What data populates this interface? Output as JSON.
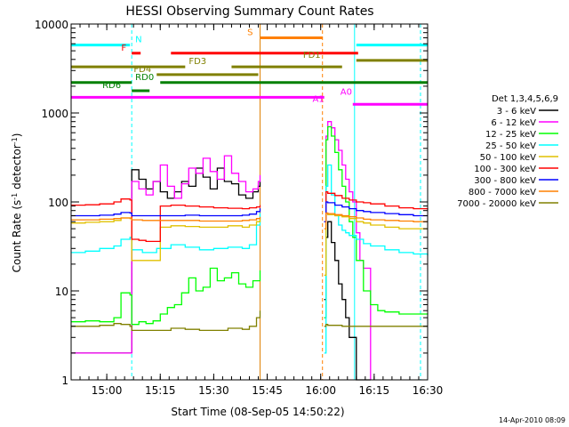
{
  "chart_data": {
    "type": "line",
    "title": "HESSI Observing Summary Count Rates",
    "xlabel": "Start Time (08-Sep-05 14:50:22)",
    "ylabel": "Count Rate (s⁻¹ detector⁻¹)",
    "ylabel_main": "Count Rate (s",
    "ylabel_sup1": "-1",
    "ylabel_mid": " detector",
    "ylabel_sup2": "-1",
    "ylabel_end": ")",
    "ylog": true,
    "xlim": [
      0,
      100
    ],
    "ylim": [
      1,
      10000
    ],
    "xtick_values": [
      10,
      25,
      40,
      55,
      70,
      85,
      100
    ],
    "xtick_labels": [
      "15:00",
      "15:15",
      "15:30",
      "15:45",
      "16:00",
      "16:15",
      "16:30"
    ],
    "ytick_values": [
      1,
      10,
      100,
      1000,
      10000
    ],
    "ytick_labels": [
      "1",
      "10",
      "100",
      "1000",
      "10000"
    ],
    "legend_placement": "right",
    "legend_title": "Det 1,3,4,5,6,9",
    "series": [
      {
        "name": "3 - 6 keV",
        "color": "#000000",
        "segments": [
          {
            "x": [
              0,
              5,
              10,
              15,
              16.5,
              17,
              19,
              21,
              23,
              25,
              27,
              29,
              31,
              33,
              35,
              37,
              39,
              41,
              43,
              45,
              47,
              49,
              51,
              52.5,
              53
            ],
            "y": [
              2,
              2,
              2,
              2,
              2,
              230,
              180,
              140,
              170,
              130,
              110,
              130,
              170,
              150,
              240,
              190,
              140,
              240,
              170,
              160,
              120,
              110,
              130,
              150,
              170
            ]
          },
          {
            "x": [
              71,
              71.5,
              72,
              73,
              74,
              75,
              76,
              77,
              78,
              80,
              82,
              84
            ],
            "y": [
              8,
              40,
              60,
              35,
              22,
              12,
              8,
              5,
              3,
              1,
              1,
              1
            ]
          }
        ]
      },
      {
        "name": "6 - 12 keV",
        "color": "#ff00ff",
        "segments": [
          {
            "x": [
              0,
              5,
              10,
              15,
              16.5,
              17,
              19,
              21,
              23,
              25,
              27,
              29,
              31,
              33,
              35,
              37,
              39,
              41,
              43,
              45,
              47,
              49,
              51,
              52.5,
              53
            ],
            "y": [
              2,
              2,
              2,
              2,
              2,
              170,
              140,
              120,
              170,
              260,
              150,
              110,
              160,
              240,
              210,
              310,
              220,
              180,
              330,
              210,
              170,
              130,
              140,
              170,
              200
            ]
          },
          {
            "x": [
              71,
              71.5,
              72,
              73,
              74,
              75,
              76,
              77,
              78,
              79,
              80,
              81,
              82,
              84
            ],
            "y": [
              5,
              550,
              800,
              680,
              500,
              380,
              260,
              180,
              130,
              100,
              45,
              22,
              18,
              1
            ]
          }
        ]
      },
      {
        "name": "12 - 25 keV",
        "color": "#00ff00",
        "segments": [
          {
            "x": [
              0,
              4,
              8,
              12,
              14,
              16.5,
              17,
              19,
              21,
              23,
              25,
              27,
              29,
              31,
              33,
              35,
              37,
              39,
              41,
              43,
              45,
              47,
              49,
              51,
              53
            ],
            "y": [
              4.5,
              4.6,
              4.5,
              5.0,
              9.5,
              9.0,
              4.2,
              4.5,
              4.3,
              4.6,
              5.5,
              6.5,
              7.0,
              9.5,
              14,
              10,
              11,
              18,
              13,
              14,
              16,
              12,
              11,
              13,
              17
            ]
          },
          {
            "x": [
              71,
              71.5,
              72,
              73,
              74,
              75,
              76,
              77,
              78,
              79,
              80,
              82,
              84,
              86,
              88,
              92,
              96,
              100
            ],
            "y": [
              5,
              500,
              700,
              550,
              360,
              230,
              150,
              100,
              60,
              40,
              22,
              10,
              7,
              6,
              5.8,
              5.5,
              5.5,
              5.6
            ]
          }
        ]
      },
      {
        "name": "25 - 50 keV",
        "color": "#00ffff",
        "segments": [
          {
            "x": [
              0,
              4,
              8,
              12,
              14,
              16.5,
              17,
              20,
              24,
              28,
              32,
              36,
              40,
              44,
              48,
              50,
              52,
              53
            ],
            "y": [
              27,
              28,
              30,
              32,
              38,
              40,
              29,
              27,
              30,
              33,
              31,
              29,
              30,
              31,
              30,
              33,
              55,
              75
            ]
          },
          {
            "x": [
              71,
              71.5,
              72,
              73,
              74,
              75,
              76,
              77,
              78,
              80,
              82,
              84,
              88,
              92,
              96,
              100
            ],
            "y": [
              2,
              150,
              260,
              120,
              70,
              55,
              48,
              45,
              42,
              38,
              34,
              32,
              29,
              27,
              26,
              25
            ]
          }
        ]
      },
      {
        "name": "50 - 100 keV",
        "color": "#e0c000",
        "segments": [
          {
            "x": [
              0,
              4,
              8,
              12,
              14,
              16.5,
              17,
              19,
              21,
              23,
              25,
              28,
              32,
              36,
              40,
              44,
              48,
              50,
              52,
              53
            ],
            "y": [
              58,
              59,
              60,
              62,
              66,
              65,
              22,
              22,
              22,
              22,
              52,
              54,
              53,
              52,
              52,
              54,
              52,
              55,
              60,
              65
            ]
          },
          {
            "x": [
              71,
              71.5,
              72,
              74,
              76,
              78,
              80,
              82,
              84,
              88,
              92,
              96,
              100
            ],
            "y": [
              15,
              75,
              72,
              70,
              68,
              65,
              60,
              58,
              55,
              52,
              50,
              50,
              50
            ]
          }
        ]
      },
      {
        "name": "100 - 300 keV",
        "color": "#ff0000",
        "segments": [
          {
            "x": [
              0,
              4,
              8,
              12,
              14,
              16.5,
              17,
              19,
              21,
              23,
              25,
              28,
              32,
              36,
              40,
              44,
              48,
              50,
              52,
              53
            ],
            "y": [
              92,
              93,
              95,
              100,
              108,
              105,
              38,
              37,
              36,
              36,
              90,
              92,
              90,
              88,
              86,
              85,
              84,
              86,
              88,
              92
            ]
          },
          {
            "x": [
              71,
              71.5,
              72,
              74,
              76,
              78,
              80,
              82,
              84,
              88,
              92,
              96,
              100
            ],
            "y": [
              60,
              130,
              125,
              118,
              110,
              105,
              100,
              98,
              95,
              90,
              86,
              84,
              82
            ]
          }
        ]
      },
      {
        "name": "300 - 800 keV",
        "color": "#0000ff",
        "segments": [
          {
            "x": [
              0,
              4,
              8,
              12,
              14,
              16.5,
              17,
              20,
              24,
              28,
              32,
              36,
              40,
              44,
              48,
              50,
              52,
              53
            ],
            "y": [
              70,
              70,
              71,
              73,
              76,
              75,
              70,
              70,
              70,
              70,
              71,
              70,
              70,
              70,
              71,
              73,
              78,
              85
            ]
          },
          {
            "x": [
              71,
              71.5,
              72,
              74,
              76,
              78,
              80,
              82,
              84,
              88,
              92,
              96,
              100
            ],
            "y": [
              60,
              100,
              98,
              92,
              88,
              84,
              80,
              78,
              76,
              74,
              72,
              70,
              70
            ]
          }
        ]
      },
      {
        "name": "800 - 7000 keV",
        "color": "#ff8000",
        "segments": [
          {
            "x": [
              0,
              4,
              8,
              12,
              14,
              16.5,
              17,
              20,
              24,
              28,
              32,
              36,
              40,
              44,
              48,
              50,
              52,
              53
            ],
            "y": [
              63,
              63,
              64,
              65,
              66,
              66,
              63,
              62,
              62,
              62,
              62,
              61,
              61,
              61,
              62,
              63,
              65,
              68
            ]
          },
          {
            "x": [
              71,
              71.5,
              72,
              74,
              76,
              78,
              80,
              82,
              84,
              88,
              92,
              96,
              100
            ],
            "y": [
              50,
              75,
              74,
              72,
              70,
              68,
              66,
              64,
              63,
              62,
              61,
              60,
              60
            ]
          }
        ]
      },
      {
        "name": "7000 - 20000 keV",
        "color": "#808000",
        "segments": [
          {
            "x": [
              0,
              4,
              8,
              12,
              14,
              16.5,
              17,
              20,
              24,
              28,
              32,
              36,
              40,
              44,
              48,
              50,
              52,
              53
            ],
            "y": [
              4.0,
              4.0,
              4.1,
              4.3,
              4.2,
              4.0,
              3.6,
              3.6,
              3.6,
              3.8,
              3.7,
              3.6,
              3.6,
              3.8,
              3.7,
              4.0,
              5.0,
              6.0
            ]
          },
          {
            "x": [
              71,
              71.5,
              72,
              74,
              76,
              78,
              80,
              82,
              84,
              88,
              92,
              96,
              100
            ],
            "y": [
              4.0,
              4.2,
              4.1,
              4.1,
              4.0,
              4.0,
              4.0,
              4.0,
              4.0,
              4.0,
              4.0,
              4.0,
              4.0
            ]
          }
        ]
      }
    ],
    "vertical_lines": [
      {
        "x": 17,
        "color": "#00ffff",
        "style": "dashed"
      },
      {
        "x": 53,
        "color": "#e08000",
        "style": "solid"
      },
      {
        "x": 70.5,
        "color": "#ff8000",
        "style": "dashed"
      },
      {
        "x": 79.5,
        "color": "#00ffff",
        "style": "solid"
      },
      {
        "x": 98,
        "color": "#00ffff",
        "style": "dashed"
      }
    ],
    "flag_bars": [
      {
        "label": "N",
        "color": "#00ffff",
        "level": 5800,
        "segments": [
          [
            0,
            16.5
          ],
          [
            80,
            100
          ]
        ],
        "label_x": 18,
        "label_side": "right"
      },
      {
        "label": "F",
        "color": "#ff0000",
        "level": 4700,
        "segments": [
          [
            17,
            19.5
          ],
          [
            28,
            80.5
          ]
        ],
        "label_x": 15.5,
        "label_side": "left"
      },
      {
        "label": "S",
        "color": "#ff8000",
        "level": 7000,
        "segments": [
          [
            53,
            70.5
          ]
        ],
        "label_x": 51,
        "label_side": "left"
      },
      {
        "label": "FD1",
        "color": "#808000",
        "level": 3900,
        "segments": [
          [
            0,
            0
          ],
          [
            80,
            100
          ]
        ],
        "label_x": 70,
        "label_side": "left"
      },
      {
        "label": "FD3",
        "color": "#808000",
        "level": 3300,
        "segments": [
          [
            0,
            32
          ],
          [
            45,
            76
          ]
        ],
        "label_x": 33,
        "label_side": "right"
      },
      {
        "label": "FD4",
        "color": "#808000",
        "level": 2700,
        "segments": [
          [
            24,
            52.5
          ]
        ],
        "label_x": 22.5,
        "label_side": "left"
      },
      {
        "label": "RD0",
        "color": "#008000",
        "level": 2200,
        "segments": [
          [
            0,
            17
          ],
          [
            25,
            100
          ]
        ],
        "label_x": 18,
        "label_side": "right"
      },
      {
        "label": "RD6",
        "color": "#008000",
        "level": 1780,
        "segments": [
          [
            17,
            22
          ]
        ],
        "label_x": 14,
        "label_side": "left"
      },
      {
        "label": "A0",
        "color": "#ff00ff",
        "level": 1500,
        "segments": [
          [
            0,
            71
          ]
        ],
        "label_x": 75.5,
        "label_side": "right"
      },
      {
        "label": "A1",
        "color": "#ff00ff",
        "level": 1250,
        "segments": [
          [
            79,
            100
          ]
        ],
        "label_x": 71,
        "label_side": "left"
      }
    ]
  },
  "timestamp": "14-Apr-2010 08:09"
}
